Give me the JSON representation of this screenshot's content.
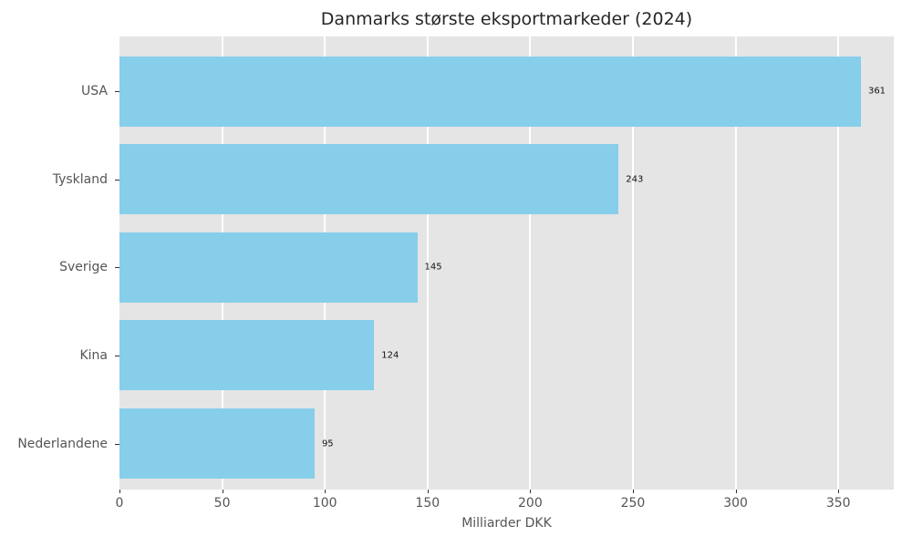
{
  "chart_data": {
    "type": "bar",
    "orientation": "horizontal",
    "title": "Danmarks største eksportmarkeder (2024)",
    "xlabel": "Milliarder DKK",
    "ylabel": "",
    "categories": [
      "USA",
      "Tyskland",
      "Sverige",
      "Kina",
      "Nederlandene"
    ],
    "values": [
      361,
      243,
      145,
      124,
      95
    ],
    "value_labels": [
      "361",
      "243",
      "145",
      "124",
      "95"
    ],
    "x_tick_labels": [
      "0",
      "50",
      "100",
      "150",
      "200",
      "250",
      "300",
      "350"
    ],
    "x_tick_values": [
      0,
      50,
      100,
      150,
      200,
      250,
      300,
      350
    ],
    "xlim": [
      0,
      377
    ],
    "grid": true,
    "legend_position": "none",
    "colors": {
      "bar": "#87CEEB",
      "plot_background": "#E5E5E5",
      "gridline": "#FFFFFF",
      "title_text": "#262626",
      "axis_tick_text": "#555555",
      "value_label_text": "#111111",
      "tick_mark": "#333333"
    }
  }
}
